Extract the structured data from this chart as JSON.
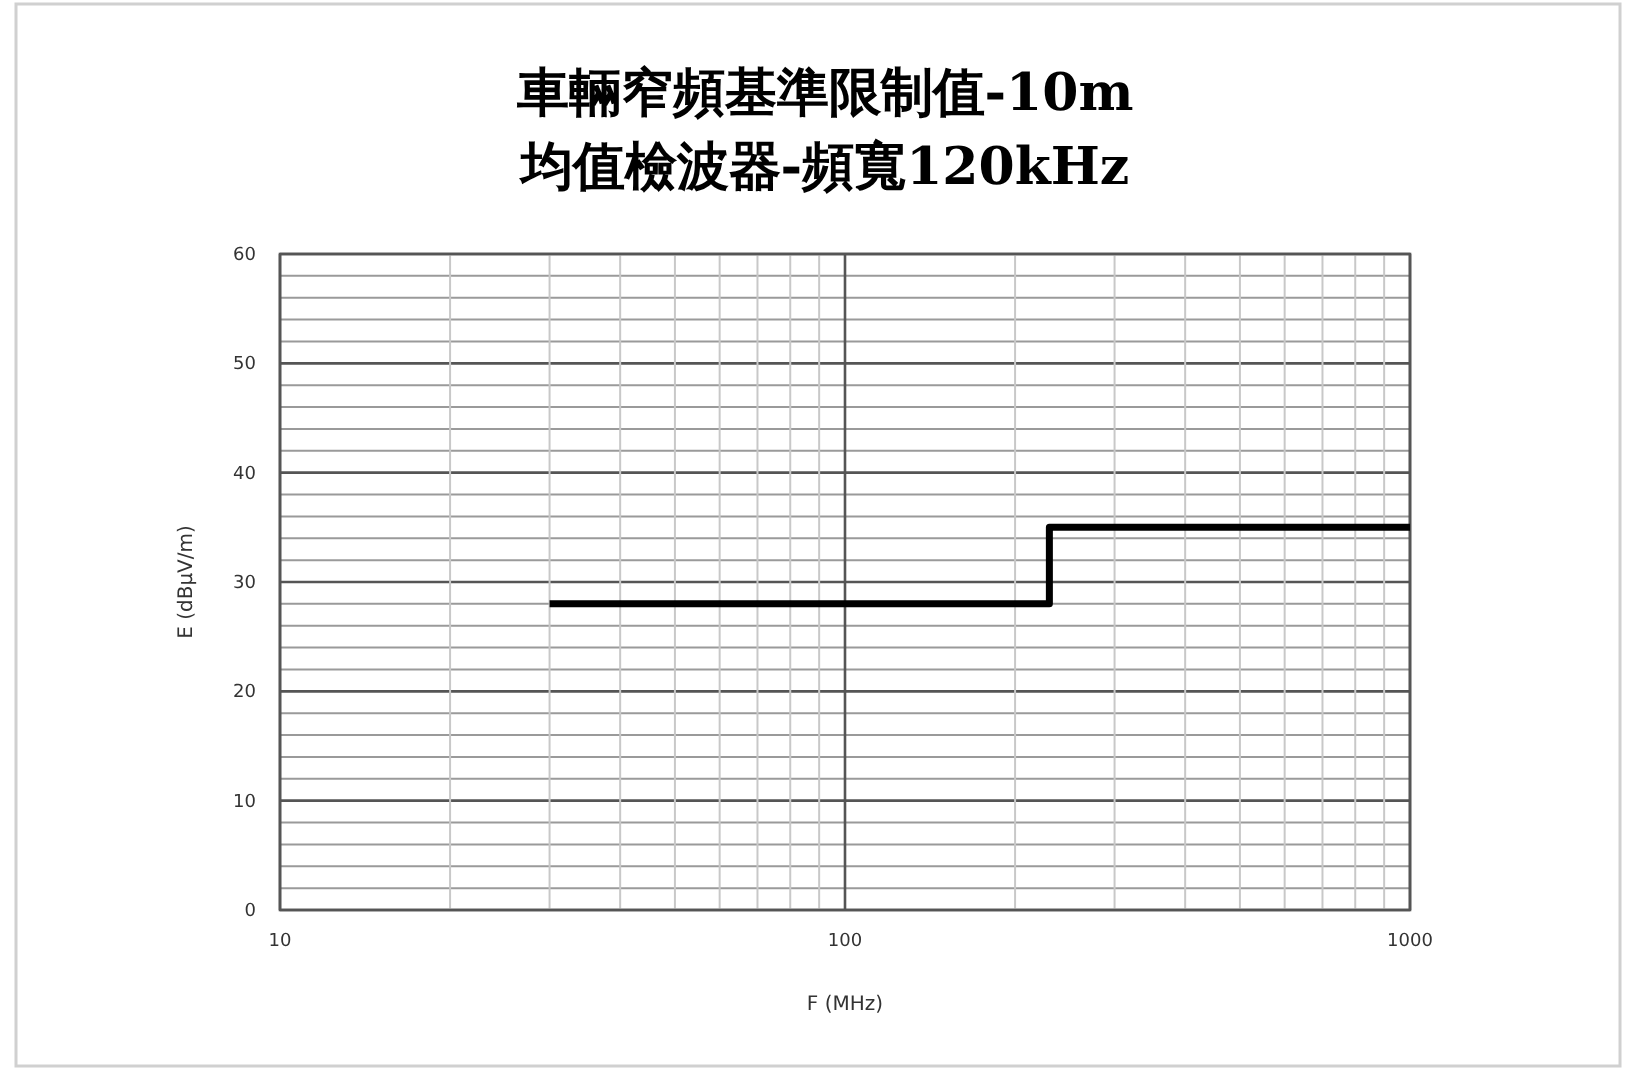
{
  "chart_data": {
    "type": "step",
    "title": "車輛窄頻基準限制值-10m",
    "subtitle": "均值檢波器-頻寬120kHz",
    "xlabel": "F (MHz)",
    "ylabel": "E (dBμV/m)",
    "log": "x",
    "x": [
      30,
      230,
      1000
    ],
    "series": [
      {
        "color": "#000000",
        "values": [
          28,
          35,
          35
        ]
      }
    ],
    "xlim": [
      10,
      1000
    ],
    "xticks": [
      10,
      100,
      1000
    ],
    "ylim": [
      0,
      60
    ],
    "yticks": [
      0,
      10,
      20,
      30,
      40,
      50,
      60
    ],
    "grid": true,
    "marker": "none",
    "line_style": "solid"
  }
}
